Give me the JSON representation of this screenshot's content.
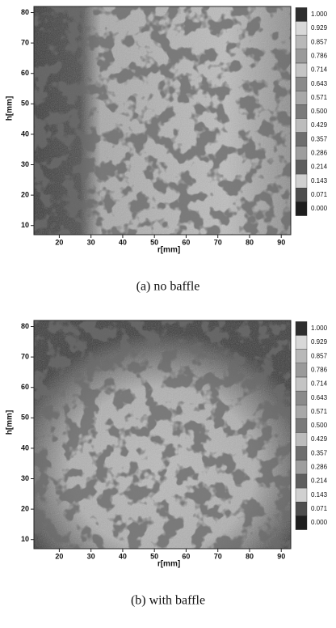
{
  "chart_data": [
    {
      "type": "heatmap",
      "caption": "(a) no baffle",
      "xlabel": "r[mm]",
      "ylabel": "h[mm]",
      "xlim": [
        12,
        93
      ],
      "ylim": [
        7,
        82
      ],
      "xticks": [
        20,
        30,
        40,
        50,
        60,
        70,
        80,
        90
      ],
      "yticks": [
        10,
        20,
        30,
        40,
        50,
        60,
        70,
        80
      ],
      "colorbar_lim": [
        0,
        1
      ],
      "colorbar_ticks": [
        {
          "value": 1,
          "label": "1.000"
        },
        {
          "value": 0.929,
          "label": "0.929"
        },
        {
          "value": 0.857,
          "label": "0.857"
        },
        {
          "value": 0.786,
          "label": "0.786"
        },
        {
          "value": 0.714,
          "label": "0.714"
        },
        {
          "value": 0.643,
          "label": "0.643"
        },
        {
          "value": 0.571,
          "label": "0.571"
        },
        {
          "value": 0.5,
          "label": "0.500"
        },
        {
          "value": 0.429,
          "label": "0.429"
        },
        {
          "value": 0.357,
          "label": "0.357"
        },
        {
          "value": 0.286,
          "label": "0.286"
        },
        {
          "value": 0.214,
          "label": "0.214"
        },
        {
          "value": 0.143,
          "label": "0.143"
        },
        {
          "value": 0.071,
          "label": "0.071"
        },
        {
          "value": 0,
          "label": "0.000"
        }
      ]
    },
    {
      "type": "heatmap",
      "caption": "(b) with baffle",
      "xlabel": "r[mm]",
      "ylabel": "h[mm]",
      "xlim": [
        12,
        93
      ],
      "ylim": [
        7,
        82
      ],
      "xticks": [
        20,
        30,
        40,
        50,
        60,
        70,
        80,
        90
      ],
      "yticks": [
        10,
        20,
        30,
        40,
        50,
        60,
        70,
        80
      ],
      "colorbar_lim": [
        0,
        1
      ],
      "colorbar_ticks": [
        {
          "value": 1,
          "label": "1.000"
        },
        {
          "value": 0.929,
          "label": "0.929"
        },
        {
          "value": 0.857,
          "label": "0.857"
        },
        {
          "value": 0.786,
          "label": "0.786"
        },
        {
          "value": 0.714,
          "label": "0.714"
        },
        {
          "value": 0.643,
          "label": "0.643"
        },
        {
          "value": 0.571,
          "label": "0.571"
        },
        {
          "value": 0.5,
          "label": "0.500"
        },
        {
          "value": 0.429,
          "label": "0.429"
        },
        {
          "value": 0.357,
          "label": "0.357"
        },
        {
          "value": 0.286,
          "label": "0.286"
        },
        {
          "value": 0.214,
          "label": "0.214"
        },
        {
          "value": 0.143,
          "label": "0.143"
        },
        {
          "value": 0.071,
          "label": "0.071"
        },
        {
          "value": 0,
          "label": "0.000"
        }
      ]
    }
  ]
}
